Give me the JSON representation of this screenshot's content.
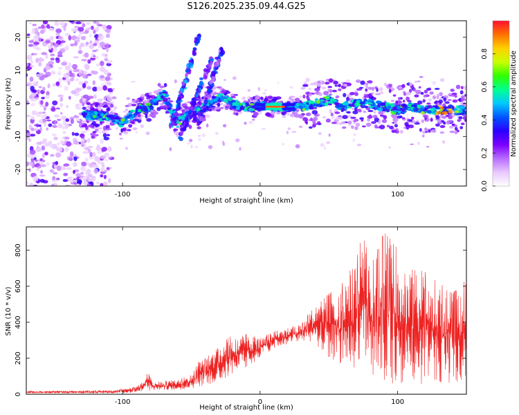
{
  "title": "S126.2025.235.09.44.G25",
  "chart_data": [
    {
      "type": "heatmap",
      "xlabel": "Height of straight line (km)",
      "ylabel": "Frequency (Hz)",
      "xlim": [
        -170,
        150
      ],
      "ylim": [
        -25,
        25
      ],
      "x_ticks": [
        -100,
        0,
        100
      ],
      "y_ticks": [
        20,
        10,
        0,
        -10,
        -20
      ],
      "colorbar": {
        "label": "Normalized spectral amplitude",
        "range": [
          0,
          1
        ],
        "ticks": [
          0.0,
          0.2,
          0.4,
          0.6,
          0.8
        ],
        "colors": [
          "#ffffff",
          "#e9c8ff",
          "#b86cff",
          "#7b00ff",
          "#2a00ff",
          "#0055ff",
          "#00c8ff",
          "#00ff90",
          "#30ff00",
          "#c8ff00",
          "#ffd000",
          "#ff7000",
          "#ff1030"
        ]
      },
      "ridge": [
        {
          "x": -125,
          "y": -3.5
        },
        {
          "x": -110,
          "y": -4
        },
        {
          "x": -100,
          "y": -6
        },
        {
          "x": -90,
          "y": -2
        },
        {
          "x": -80,
          "y": -1
        },
        {
          "x": -70,
          "y": 3
        },
        {
          "x": -60,
          "y": -6
        },
        {
          "x": -55,
          "y": -4
        },
        {
          "x": -50,
          "y": -3
        },
        {
          "x": -45,
          "y": -2
        },
        {
          "x": -40,
          "y": -1
        },
        {
          "x": -30,
          "y": 2
        },
        {
          "x": -20,
          "y": 0
        },
        {
          "x": -10,
          "y": -1
        },
        {
          "x": 0,
          "y": -1
        },
        {
          "x": 10,
          "y": -1
        },
        {
          "x": 20,
          "y": -1
        },
        {
          "x": 30,
          "y": -1
        },
        {
          "x": 40,
          "y": 0
        },
        {
          "x": 50,
          "y": 1
        },
        {
          "x": 60,
          "y": -1
        },
        {
          "x": 70,
          "y": 0
        },
        {
          "x": 80,
          "y": 0
        },
        {
          "x": 90,
          "y": -1
        },
        {
          "x": 100,
          "y": -2
        },
        {
          "x": 110,
          "y": -1
        },
        {
          "x": 120,
          "y": -2
        },
        {
          "x": 135,
          "y": -2
        },
        {
          "x": 148,
          "y": -2
        }
      ],
      "peak": {
        "x_range": [
          5,
          17
        ],
        "y": -1,
        "amplitude": 1.0
      },
      "streaks": [
        {
          "from": [
            -65,
            -8
          ],
          "to": [
            -45,
            20
          ],
          "amplitude": 0.5
        },
        {
          "from": [
            -58,
            -10
          ],
          "to": [
            -35,
            14
          ],
          "amplitude": 0.45
        },
        {
          "from": [
            -45,
            -7
          ],
          "to": [
            -28,
            16
          ],
          "amplitude": 0.4
        }
      ]
    },
    {
      "type": "line",
      "xlabel": "Height of straight line (km)",
      "ylabel": "SNR (10 * v/v)",
      "xlim": [
        -170,
        150
      ],
      "ylim": [
        0,
        930
      ],
      "x_ticks": [
        -100,
        0,
        100
      ],
      "y_ticks": [
        0,
        200,
        400,
        600,
        800
      ],
      "color": "#ee2222",
      "envelope": {
        "x": [
          -170,
          -140,
          -110,
          -100,
          -90,
          -85,
          -82,
          -78,
          -70,
          -60,
          -50,
          -45,
          -40,
          -35,
          -30,
          -25,
          -20,
          -10,
          0,
          10,
          20,
          30,
          40,
          50,
          60,
          70,
          75,
          80,
          90,
          100,
          110,
          120,
          130,
          140,
          150
        ],
        "low": [
          5,
          5,
          5,
          5,
          10,
          20,
          20,
          20,
          20,
          25,
          30,
          40,
          50,
          60,
          70,
          90,
          100,
          140,
          200,
          250,
          280,
          290,
          280,
          200,
          150,
          120,
          100,
          80,
          60,
          50,
          50,
          60,
          60,
          60,
          60
        ],
        "high": [
          18,
          20,
          22,
          30,
          45,
          70,
          130,
          70,
          75,
          80,
          110,
          180,
          200,
          230,
          270,
          300,
          330,
          340,
          310,
          350,
          370,
          390,
          500,
          560,
          620,
          750,
          930,
          700,
          900,
          820,
          700,
          680,
          620,
          560,
          640
        ]
      }
    }
  ]
}
